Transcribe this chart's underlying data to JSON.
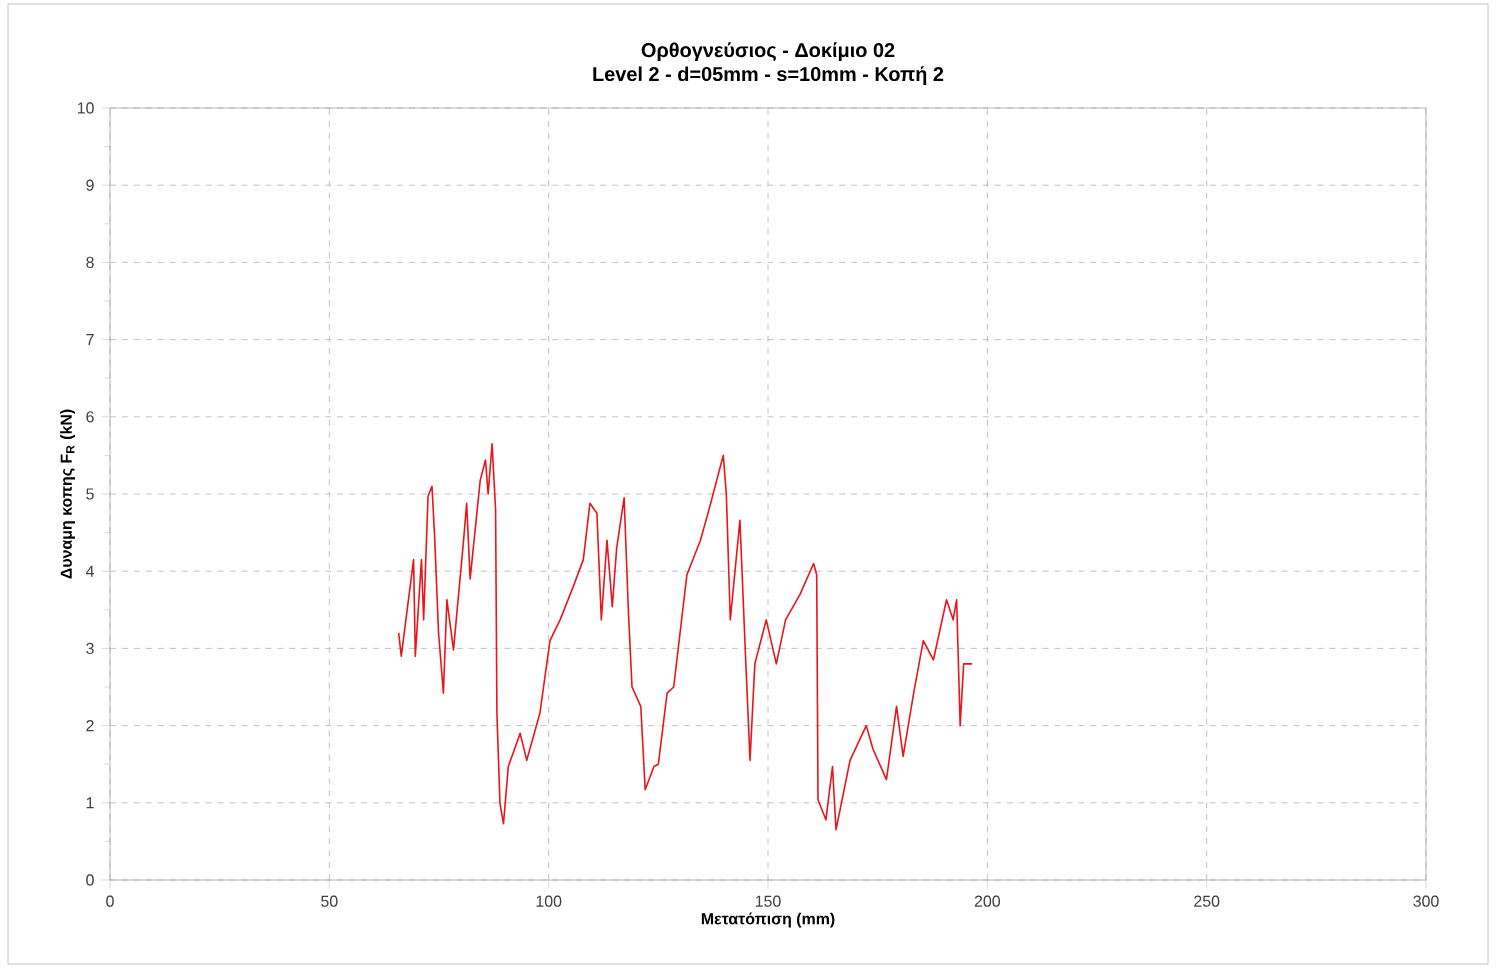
{
  "chart_data": {
    "type": "line",
    "title": "Ορθογνεύσιος - Δοκίμιο 02",
    "subtitle": "Level 2 - d=05mm - s=10mm - Κοπή 2",
    "xlabel": "Μετατόπιση (mm)",
    "ylabel": "Δυναμη κοπης F$_{R}$ (kN)",
    "xlim": [
      0,
      300
    ],
    "ylim": [
      0,
      10
    ],
    "xticks": [
      0,
      50,
      100,
      150,
      200,
      250,
      300
    ],
    "yticks": [
      0,
      1,
      2,
      3,
      4,
      5,
      6,
      7,
      8,
      9,
      10
    ],
    "grid": true,
    "series": [
      {
        "color": "#e8151b",
        "x": [
          65.8,
          66.4,
          69.2,
          69.6,
          71,
          71.5,
          72.5,
          73.4,
          74,
          74.9,
          76,
          76.8,
          78.3,
          80.6,
          81.3,
          82.1,
          84.4,
          85.6,
          86.2,
          87.1,
          87.9,
          88.2,
          88.9,
          89.7,
          90.8,
          93.5,
          95,
          98,
          100.3,
          102.6,
          105.6,
          107.9,
          109.4,
          111,
          112,
          113.3,
          114.5,
          115.5,
          117.2,
          118.2,
          119,
          121,
          122,
          124,
          125,
          127,
          128.5,
          131.5,
          134.6,
          136.8,
          139.8,
          140.5,
          141.4,
          143.6,
          144.8,
          145.9,
          147,
          149.6,
          151.9,
          154,
          157.3,
          160.4,
          161.1,
          161.4,
          163.2,
          164.7,
          165.5,
          168.7,
          172.4,
          173.9,
          177,
          179.3,
          180.8,
          183.2,
          185.4,
          187.7,
          190.7,
          192.2,
          193,
          193.8,
          194.6,
          196.5
        ],
        "values": [
          3.2,
          2.9,
          4.15,
          2.9,
          4.15,
          3.37,
          4.97,
          5.1,
          4.45,
          3.2,
          2.42,
          3.63,
          2.98,
          4.4,
          4.88,
          3.9,
          5.18,
          5.44,
          5.0,
          5.65,
          4.8,
          2.16,
          0.99,
          0.73,
          1.47,
          1.9,
          1.55,
          2.16,
          3.1,
          3.37,
          3.8,
          4.15,
          4.88,
          4.75,
          3.37,
          4.4,
          3.54,
          4.3,
          4.95,
          3.45,
          2.5,
          2.25,
          1.17,
          1.47,
          1.5,
          2.42,
          2.5,
          3.95,
          4.4,
          4.85,
          5.5,
          5.0,
          3.37,
          4.66,
          3.0,
          1.55,
          2.8,
          3.37,
          2.8,
          3.37,
          3.7,
          4.1,
          3.95,
          1.04,
          0.78,
          1.47,
          0.65,
          1.55,
          2.0,
          1.7,
          1.3,
          2.25,
          1.6,
          2.42,
          3.1,
          2.85,
          3.63,
          3.37,
          3.63,
          2.0,
          2.8,
          2.8
        ]
      }
    ]
  }
}
